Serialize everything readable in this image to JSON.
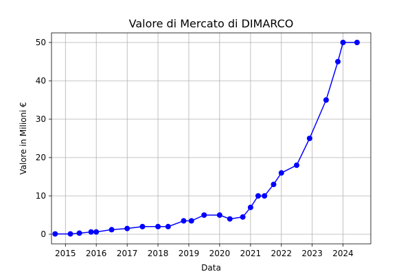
{
  "chart_data": {
    "type": "line",
    "title": "Valore di Mercato di DIMARCO",
    "xlabel": "Data",
    "ylabel": "Valore in Milioni €",
    "x_ticks": [
      "2015",
      "2016",
      "2017",
      "2018",
      "2019",
      "2020",
      "2021",
      "2022",
      "2023",
      "2024"
    ],
    "y_ticks": [
      "0",
      "10",
      "20",
      "30",
      "40",
      "50"
    ],
    "xlim": [
      "2014-07-20",
      "2024-11-25"
    ],
    "ylim": [
      -2.5,
      52.5
    ],
    "grid": true,
    "series": [
      {
        "color": "#0000ff",
        "points": [
          {
            "x": "2014-09-01",
            "y": 0.1
          },
          {
            "x": "2015-03-01",
            "y": 0.1
          },
          {
            "x": "2015-06-15",
            "y": 0.3
          },
          {
            "x": "2015-11-01",
            "y": 0.6
          },
          {
            "x": "2016-01-01",
            "y": 0.6
          },
          {
            "x": "2016-07-01",
            "y": 1.2
          },
          {
            "x": "2017-01-01",
            "y": 1.5
          },
          {
            "x": "2017-07-01",
            "y": 2.0
          },
          {
            "x": "2018-01-01",
            "y": 2.0
          },
          {
            "x": "2018-05-01",
            "y": 2.0
          },
          {
            "x": "2018-11-01",
            "y": 3.5
          },
          {
            "x": "2019-02-01",
            "y": 3.5
          },
          {
            "x": "2019-07-01",
            "y": 5.0
          },
          {
            "x": "2020-01-01",
            "y": 5.0
          },
          {
            "x": "2020-05-01",
            "y": 4.0
          },
          {
            "x": "2020-10-01",
            "y": 4.5
          },
          {
            "x": "2021-01-01",
            "y": 7.0
          },
          {
            "x": "2021-04-01",
            "y": 10.0
          },
          {
            "x": "2021-06-15",
            "y": 10.0
          },
          {
            "x": "2021-10-01",
            "y": 13.0
          },
          {
            "x": "2022-01-01",
            "y": 16.0
          },
          {
            "x": "2022-07-01",
            "y": 18.0
          },
          {
            "x": "2022-12-01",
            "y": 25.0
          },
          {
            "x": "2023-06-15",
            "y": 35.0
          },
          {
            "x": "2023-11-01",
            "y": 45.0
          },
          {
            "x": "2024-01-01",
            "y": 50.0
          },
          {
            "x": "2024-06-15",
            "y": 50.0
          }
        ]
      }
    ]
  }
}
